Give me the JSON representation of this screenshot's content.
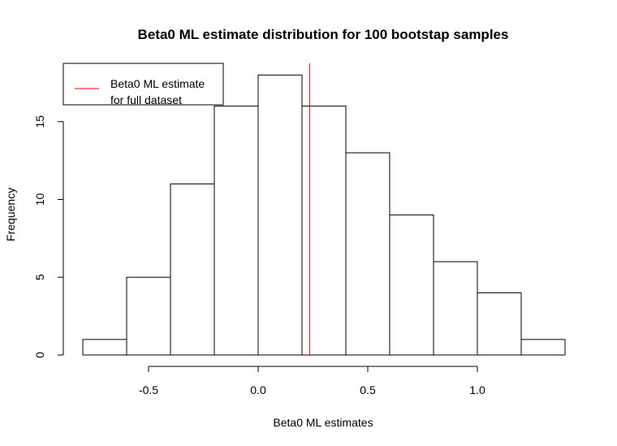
{
  "chart_data": {
    "type": "bar",
    "title": "Beta0 ML estimate distribution for 100 bootstap samples",
    "xlabel": "Beta0 ML estimates",
    "ylabel": "Frequency",
    "bins": [
      {
        "start": -0.8,
        "end": -0.6,
        "count": 1
      },
      {
        "start": -0.6,
        "end": -0.4,
        "count": 5
      },
      {
        "start": -0.4,
        "end": -0.2,
        "count": 11
      },
      {
        "start": -0.2,
        "end": 0.0,
        "count": 16
      },
      {
        "start": 0.0,
        "end": 0.2,
        "count": 18
      },
      {
        "start": 0.2,
        "end": 0.4,
        "count": 16
      },
      {
        "start": 0.4,
        "end": 0.6,
        "count": 13
      },
      {
        "start": 0.6,
        "end": 0.8,
        "count": 9
      },
      {
        "start": 0.8,
        "end": 1.0,
        "count": 6
      },
      {
        "start": 1.0,
        "end": 1.2,
        "count": 4
      },
      {
        "start": 1.2,
        "end": 1.4,
        "count": 1
      }
    ],
    "xlim": [
      -0.8,
      1.4
    ],
    "ylim": [
      0,
      18
    ],
    "x_ticks": [
      -0.5,
      0.0,
      0.5,
      1.0
    ],
    "x_tick_labels": [
      "-0.5",
      "0.0",
      "0.5",
      "1.0"
    ],
    "y_ticks": [
      0,
      5,
      10,
      15
    ],
    "y_tick_labels": [
      "0",
      "5",
      "10",
      "15"
    ],
    "reference_line": {
      "x": 0.235,
      "color": "#ff0000"
    },
    "legend": {
      "placement": "top-left",
      "entries": [
        {
          "label_line1": "Beta0 ML estimate",
          "label_line2": "for full dataset",
          "color": "#ff0000"
        }
      ]
    },
    "grid": false,
    "colors": {
      "bar_fill": "#ffffff",
      "bar_stroke": "#000000"
    }
  }
}
